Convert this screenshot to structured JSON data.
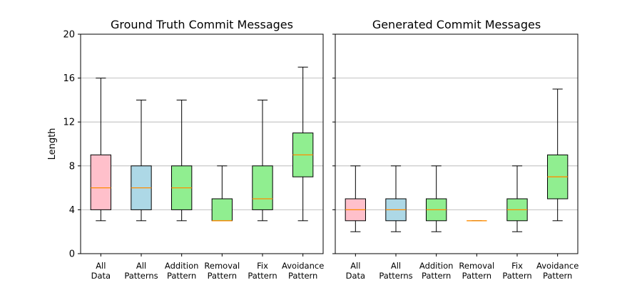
{
  "chart_data": [
    {
      "type": "box",
      "title": "Ground Truth Commit Messages",
      "ylabel": "Length",
      "ylim": [
        0,
        20
      ],
      "yticks": [
        "0",
        "4",
        "8",
        "12",
        "16",
        "20"
      ],
      "grid": "y",
      "categories": [
        {
          "lines": [
            "All",
            "Data"
          ]
        },
        {
          "lines": [
            "All",
            "Patterns"
          ]
        },
        {
          "lines": [
            "Addition",
            "Pattern"
          ]
        },
        {
          "lines": [
            "Removal",
            "Pattern"
          ]
        },
        {
          "lines": [
            "Fix",
            "Pattern"
          ]
        },
        {
          "lines": [
            "Avoidance",
            "Pattern"
          ]
        }
      ],
      "boxes": [
        {
          "whisker_low": 3,
          "q1": 4,
          "median": 6,
          "q3": 9,
          "whisker_high": 16
        },
        {
          "whisker_low": 3,
          "q1": 4,
          "median": 6,
          "q3": 8,
          "whisker_high": 14
        },
        {
          "whisker_low": 3,
          "q1": 4,
          "median": 6,
          "q3": 8,
          "whisker_high": 14
        },
        {
          "whisker_low": 3,
          "q1": 3,
          "median": 3,
          "q3": 5,
          "whisker_high": 8
        },
        {
          "whisker_low": 3,
          "q1": 4,
          "median": 5,
          "q3": 8,
          "whisker_high": 14
        },
        {
          "whisker_low": 3,
          "q1": 7,
          "median": 9,
          "q3": 11,
          "whisker_high": 17
        }
      ]
    },
    {
      "type": "box",
      "title": "Generated Commit Messages",
      "ylabel": "",
      "ylim": [
        0,
        20
      ],
      "yticks": [
        "",
        "",
        "",
        "",
        "",
        ""
      ],
      "grid": "y",
      "categories": [
        {
          "lines": [
            "All",
            "Data"
          ]
        },
        {
          "lines": [
            "All",
            "Patterns"
          ]
        },
        {
          "lines": [
            "Addition",
            "Pattern"
          ]
        },
        {
          "lines": [
            "Removal",
            "Pattern"
          ]
        },
        {
          "lines": [
            "Fix",
            "Pattern"
          ]
        },
        {
          "lines": [
            "Avoidance",
            "Pattern"
          ]
        }
      ],
      "boxes": [
        {
          "whisker_low": 2,
          "q1": 3,
          "median": 4,
          "q3": 5,
          "whisker_high": 8
        },
        {
          "whisker_low": 2,
          "q1": 3,
          "median": 4,
          "q3": 5,
          "whisker_high": 8
        },
        {
          "whisker_low": 2,
          "q1": 3,
          "median": 4,
          "q3": 5,
          "whisker_high": 8
        },
        {
          "whisker_low": 3,
          "q1": 3,
          "median": 3,
          "q3": 3,
          "whisker_high": 3
        },
        {
          "whisker_low": 2,
          "q1": 3,
          "median": 4,
          "q3": 5,
          "whisker_high": 8
        },
        {
          "whisker_low": 3,
          "q1": 5,
          "median": 7,
          "q3": 9,
          "whisker_high": 15
        }
      ]
    }
  ],
  "colors": {
    "box_fills": [
      "#ffc0cb",
      "#add8e6",
      "#90ee90",
      "#90ee90",
      "#90ee90",
      "#90ee90"
    ],
    "median": "#ff8c00",
    "edge": "#000000",
    "grid": "#b0b0b0"
  }
}
